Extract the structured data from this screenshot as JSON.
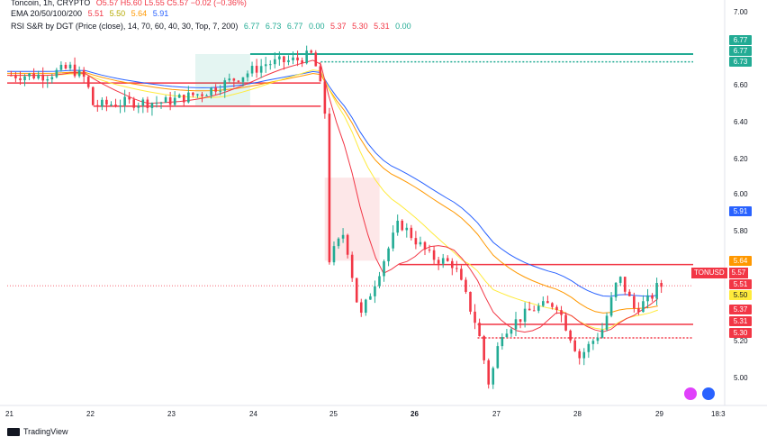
{
  "header": {
    "symbol_line": "Toncoin, 1h, CRYPTO",
    "ohlc": "O5.57 H5.60 L5.55 C5.57 −0.02 (−0.36%)",
    "ema_name": "EMA 20/50/100/200",
    "ema_values": [
      "5.51",
      "5.50",
      "5.64",
      "5.91"
    ],
    "rsi_name": "RSI S&R by DGT",
    "rsi_params": "(Price (close), 14, 70, 60, 40, 30, Top, 7, 200)",
    "rsi_values": [
      "6.77",
      "6.73",
      "6.77",
      "0.00",
      "5.37",
      "5.30",
      "5.31",
      "0.00"
    ]
  },
  "price_axis": [
    "7.00",
    "6.80",
    "6.60",
    "6.40",
    "6.20",
    "6.00",
    "5.80",
    "5.60",
    "5.40",
    "5.20",
    "5.00"
  ],
  "time_axis": [
    "21",
    "22",
    "23",
    "24",
    "25",
    "26",
    "27",
    "28",
    "29",
    "18:3"
  ],
  "badges": [
    {
      "label": "6.77",
      "color": "#22ab94"
    },
    {
      "label": "6.77",
      "color": "#22ab94"
    },
    {
      "label": "6.73",
      "color": "#22ab94"
    },
    {
      "label": "5.91",
      "color": "#2962ff"
    },
    {
      "label": "5.64",
      "color": "#ff9800"
    },
    {
      "label": "5.51",
      "color": "#f23645"
    },
    {
      "label": "5.50",
      "color": "#ffeb3b"
    },
    {
      "label": "5.37",
      "color": "#f23645"
    },
    {
      "label": "5.31",
      "color": "#f23645"
    },
    {
      "label": "5.30",
      "color": "#f23645"
    }
  ],
  "last_price": {
    "symbol": "TONUSD",
    "value": "5.57"
  },
  "brand": "TradingView",
  "colors": {
    "up": "#22ab94",
    "down": "#f23645",
    "ema20": "#f23645",
    "ema50": "#ffeb3b",
    "ema100": "#ff9800",
    "ema200": "#2962ff",
    "resistance": "#22ab94",
    "support": "#f23645"
  },
  "chart_data": {
    "type": "candlestick",
    "symbol": "TONUSD",
    "interval": "1h",
    "ylim": [
      4.95,
      7.05
    ],
    "x_labels": [
      "21",
      "22",
      "23",
      "24",
      "25",
      "26",
      "27",
      "28",
      "29"
    ],
    "candles_close_path": [
      {
        "day": 21.0,
        "price": 6.66
      },
      {
        "day": 21.5,
        "price": 6.66
      },
      {
        "day": 21.8,
        "price": 6.7
      },
      {
        "day": 22.0,
        "price": 6.64
      },
      {
        "day": 22.1,
        "price": 6.5
      },
      {
        "day": 22.5,
        "price": 6.52
      },
      {
        "day": 23.0,
        "price": 6.52
      },
      {
        "day": 23.5,
        "price": 6.57
      },
      {
        "day": 24.0,
        "price": 6.66
      },
      {
        "day": 24.3,
        "price": 6.72
      },
      {
        "day": 24.7,
        "price": 6.74
      },
      {
        "day": 24.9,
        "price": 6.77
      },
      {
        "day": 25.05,
        "price": 6.5
      },
      {
        "day": 25.1,
        "price": 5.7
      },
      {
        "day": 25.3,
        "price": 5.85
      },
      {
        "day": 25.5,
        "price": 5.4
      },
      {
        "day": 25.8,
        "price": 5.7
      },
      {
        "day": 26.0,
        "price": 5.9
      },
      {
        "day": 26.4,
        "price": 5.72
      },
      {
        "day": 26.7,
        "price": 5.68
      },
      {
        "day": 27.0,
        "price": 5.35
      },
      {
        "day": 27.15,
        "price": 5.05
      },
      {
        "day": 27.3,
        "price": 5.33
      },
      {
        "day": 27.7,
        "price": 5.45
      },
      {
        "day": 28.0,
        "price": 5.48
      },
      {
        "day": 28.3,
        "price": 5.2
      },
      {
        "day": 28.6,
        "price": 5.35
      },
      {
        "day": 28.8,
        "price": 5.62
      },
      {
        "day": 29.0,
        "price": 5.45
      },
      {
        "day": 29.2,
        "price": 5.5
      },
      {
        "day": 29.3,
        "price": 5.57
      }
    ],
    "ema_levels_last": {
      "ema20": 5.51,
      "ema50": 5.5,
      "ema100": 5.64,
      "ema200": 5.91
    },
    "resistance_levels": [
      6.77,
      6.73
    ],
    "support_levels": [
      5.37,
      5.31,
      5.3
    ],
    "grid": false
  }
}
